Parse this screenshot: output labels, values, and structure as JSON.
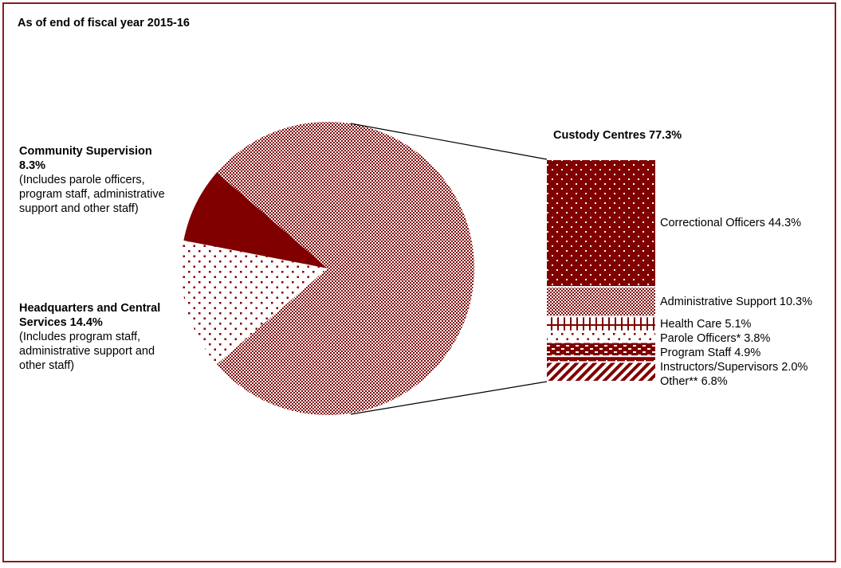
{
  "chart_data": {
    "type": "bar-of-pie",
    "subtitle": "As of end of fiscal year 2015-16",
    "pie": [
      {
        "name": "Custody Centres",
        "value": 77.3,
        "label": "Custody Centres  77.3%",
        "pattern": "checker"
      },
      {
        "name": "Community Supervision",
        "value": 8.3,
        "label_line1": "Community Supervision",
        "label_line2": "8.3%",
        "note": [
          "(Includes parole officers,",
          "program staff, administrative",
          "support and other staff)"
        ],
        "pattern": "solid"
      },
      {
        "name": "Headquarters and Central Services",
        "value": 14.4,
        "label_line1": "Headquarters and Central",
        "label_line2": "Services  14.4%",
        "note": [
          "(Includes program staff,",
          "administrative support and",
          "other staff)"
        ],
        "pattern": "dots"
      }
    ],
    "bar": [
      {
        "name": "Correctional Officers",
        "value": 44.3,
        "label": "Correctional Officers  44.3%",
        "pattern": "dotsOnDark"
      },
      {
        "name": "Administrative Support",
        "value": 10.3,
        "label": "Administrative Support  10.3%",
        "pattern": "checker"
      },
      {
        "name": "Health Care",
        "value": 5.1,
        "label": "Health Care  5.1%",
        "pattern": "cross"
      },
      {
        "name": "Parole Officers*",
        "value": 3.8,
        "label": "Parole Officers*  3.8%",
        "pattern": "dots"
      },
      {
        "name": "Program Staff",
        "value": 4.9,
        "label": "Program Staff  4.9%",
        "pattern": "dashes"
      },
      {
        "name": "Instructors/Supervisors",
        "value": 2.0,
        "label": "Instructors/Supervisors  2.0%",
        "pattern": "strip"
      },
      {
        "name": "Other**",
        "value": 6.8,
        "label": "Other**  6.8%",
        "pattern": "diagonal"
      }
    ],
    "colors": {
      "primary": "#800000",
      "frame": "#8b1c1c"
    }
  }
}
